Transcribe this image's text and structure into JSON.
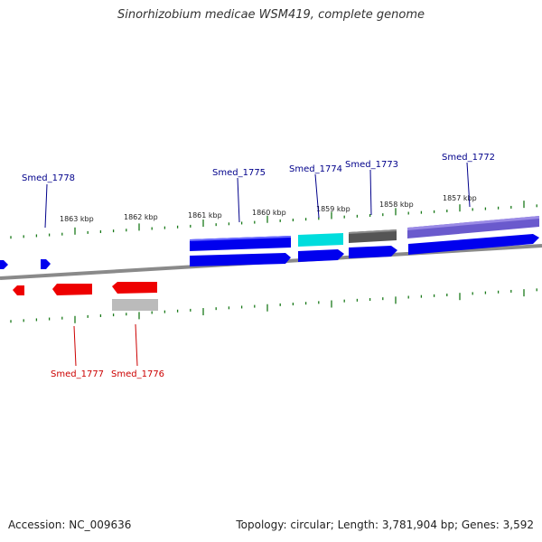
{
  "title": "Sinorhizobium medicae WSM419, complete genome",
  "footer": {
    "accession": "Accession: NC_009636",
    "summary": "Topology: circular; Length: 3,781,904 bp; Genes: 3,592"
  },
  "colors": {
    "forward_label": "#00008b",
    "reverse_label": "#cc0000",
    "gene_blue": "#0000ee",
    "gene_red": "#ee0000",
    "gene_cyan": "#00dddd",
    "gene_gray": "#555555",
    "gene_purple": "#6a5acd",
    "gene_lightgray": "#bbbbbb",
    "tick": "#1a7a1a",
    "backbone": "#8a8a8a"
  },
  "kbp_labels": [
    "1863 kbp",
    "1862 kbp",
    "1861 kbp",
    "1860 kbp",
    "1859 kbp",
    "1858 kbp",
    "1857 kbp"
  ],
  "gene_labels": {
    "forward": [
      "Smed_1778",
      "Smed_1775",
      "Smed_1774",
      "Smed_1773",
      "Smed_1772"
    ],
    "reverse": [
      "Smed_1777",
      "Smed_1776"
    ]
  }
}
